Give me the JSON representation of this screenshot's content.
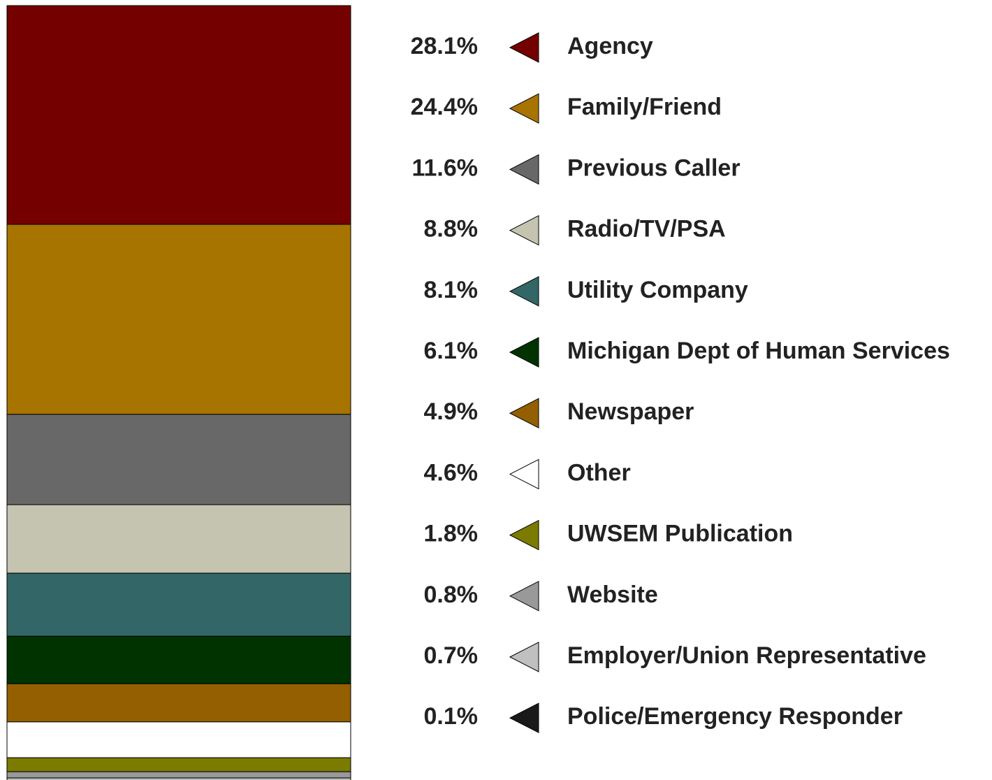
{
  "chart_data": {
    "type": "stacked_bar",
    "series": [
      {
        "name": "Agency",
        "color": "#740000",
        "values": [
          28.1
        ],
        "value_labels": [
          "28.1%"
        ]
      },
      {
        "name": "Family/Friend",
        "color": "#a87400",
        "values": [
          24.4
        ],
        "value_labels": [
          "24.4%"
        ]
      },
      {
        "name": "Previous Caller",
        "color": "#686868",
        "values": [
          11.6
        ],
        "value_labels": [
          "11.6%"
        ]
      },
      {
        "name": "Radio/TV/PSA",
        "color": "#c4c4b0",
        "values": [
          8.8
        ],
        "value_labels": [
          "8.8%"
        ]
      },
      {
        "name": "Utility Company",
        "color": "#336666",
        "values": [
          8.1
        ],
        "value_labels": [
          "8.1%"
        ]
      },
      {
        "name": "Michigan Dept of Human Services",
        "color": "#003300",
        "values": [
          6.1
        ],
        "value_labels": [
          "6.1%"
        ]
      },
      {
        "name": "Newspaper",
        "color": "#935f00",
        "values": [
          4.9
        ],
        "value_labels": [
          "4.9%"
        ]
      },
      {
        "name": "Other",
        "color": "#ffffff",
        "values": [
          4.6
        ],
        "value_labels": [
          "4.6%"
        ]
      },
      {
        "name": "UWSEM Publication",
        "color": "#7b7b00",
        "values": [
          1.8
        ],
        "value_labels": [
          "1.8%"
        ]
      },
      {
        "name": "Website",
        "color": "#999999",
        "values": [
          0.8
        ],
        "value_labels": [
          "0.8%"
        ]
      },
      {
        "name": "Employer/Union Representative",
        "color": "#c0c0c0",
        "values": [
          0.7
        ],
        "value_labels": [
          "0.7%"
        ]
      },
      {
        "name": "Police/Emergency Responder",
        "color": "#1a1a1a",
        "values": [
          0.1
        ],
        "value_labels": [
          "0.1%"
        ]
      }
    ]
  }
}
